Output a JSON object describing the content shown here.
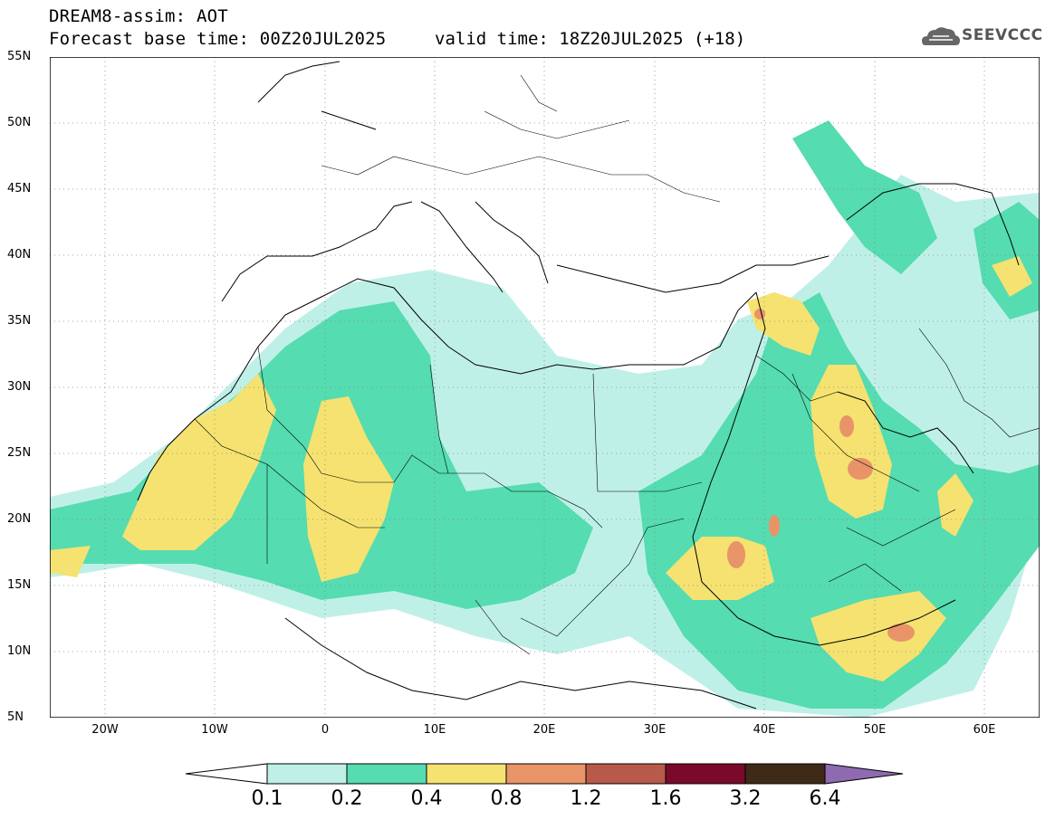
{
  "header": {
    "title": "DREAM8-assim: AOT",
    "base_time": "Forecast base time: 00Z20JUL2025",
    "valid_time": "valid time: 18Z20JUL2025 (+18)",
    "logo_text": "SEEVCCC"
  },
  "map": {
    "lon_range": [
      -25,
      65
    ],
    "lat_range": [
      5,
      55
    ],
    "y_ticks": [
      "5N",
      "10N",
      "15N",
      "20N",
      "25N",
      "30N",
      "35N",
      "40N",
      "45N",
      "50N",
      "55N"
    ],
    "x_ticks": [
      "20W",
      "10W",
      "0",
      "10E",
      "20E",
      "30E",
      "40E",
      "50E",
      "60E"
    ],
    "gridlines": true
  },
  "legend": {
    "levels": [
      "0.1",
      "0.2",
      "0.4",
      "0.8",
      "1.2",
      "1.6",
      "3.2",
      "6.4"
    ],
    "colors": [
      "#bff0e8",
      "#55dcb0",
      "#f5e270",
      "#e89468",
      "#b85a4a",
      "#7a0a2a",
      "#3f2a18",
      "#8e6ab0"
    ]
  }
}
